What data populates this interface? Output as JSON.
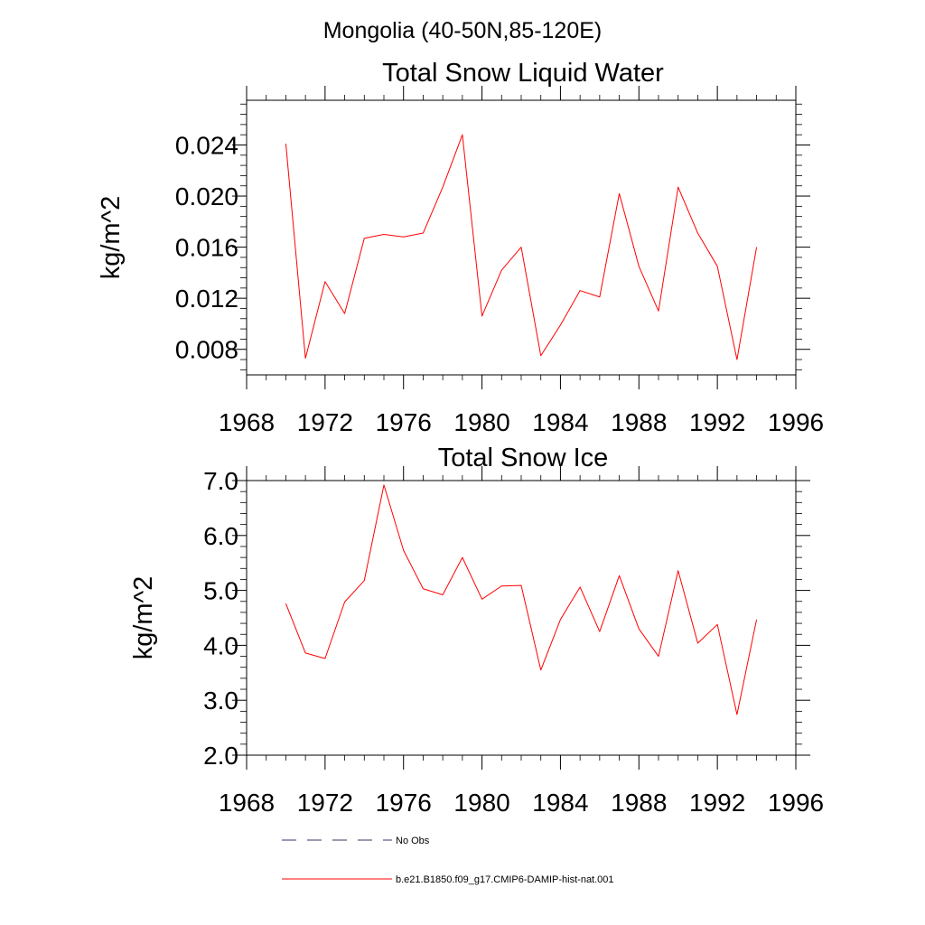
{
  "figure": {
    "title": "Mongolia (40-50N,85-120E)"
  },
  "chart_data": [
    {
      "type": "line",
      "title": "Total Snow Liquid Water",
      "xlabel": "",
      "ylabel": "kg/m^2",
      "xlim": [
        1968,
        1996
      ],
      "ylim": [
        0.006,
        0.0275
      ],
      "xticks": [
        1968,
        1972,
        1976,
        1980,
        1984,
        1988,
        1992,
        1996
      ],
      "xtick_labels": [
        "1968",
        "1972",
        "1976",
        "1980",
        "1984",
        "1988",
        "1992",
        "1996"
      ],
      "yticks": [
        0.008,
        0.012,
        0.016,
        0.02,
        0.024
      ],
      "ytick_labels": [
        "0.008",
        "0.012",
        "0.016",
        "0.020",
        "0.024"
      ],
      "grid": false,
      "series": [
        {
          "color": "#ff0000",
          "x": [
            1970,
            1971,
            1972,
            1973,
            1974,
            1975,
            1976,
            1977,
            1978,
            1979,
            1980,
            1981,
            1982,
            1983,
            1984,
            1985,
            1986,
            1987,
            1988,
            1989,
            1990,
            1991,
            1992,
            1993,
            1994
          ],
          "values": [
            0.0241,
            0.0073,
            0.0133,
            0.0108,
            0.0167,
            0.017,
            0.0168,
            0.0171,
            0.0207,
            0.0248,
            0.0106,
            0.0142,
            0.016,
            0.0075,
            0.0099,
            0.0126,
            0.0121,
            0.0202,
            0.0145,
            0.011,
            0.0207,
            0.0171,
            0.0145,
            0.0072,
            0.016
          ]
        }
      ]
    },
    {
      "type": "line",
      "title": "Total Snow Ice",
      "xlabel": "",
      "ylabel": "kg/m^2",
      "xlim": [
        1968,
        1996
      ],
      "ylim": [
        2.0,
        7.0
      ],
      "xticks": [
        1968,
        1972,
        1976,
        1980,
        1984,
        1988,
        1992,
        1996
      ],
      "xtick_labels": [
        "1968",
        "1972",
        "1976",
        "1980",
        "1984",
        "1988",
        "1992",
        "1996"
      ],
      "yticks": [
        2.0,
        3.0,
        4.0,
        5.0,
        6.0,
        7.0
      ],
      "ytick_labels": [
        "2.0",
        "3.0",
        "4.0",
        "5.0",
        "6.0",
        "7.0"
      ],
      "grid": false,
      "series": [
        {
          "color": "#ff0000",
          "x": [
            1970,
            1971,
            1972,
            1973,
            1974,
            1975,
            1976,
            1977,
            1978,
            1979,
            1980,
            1981,
            1982,
            1983,
            1984,
            1985,
            1986,
            1987,
            1988,
            1989,
            1990,
            1991,
            1992,
            1993,
            1994
          ],
          "values": [
            4.76,
            3.86,
            3.76,
            4.79,
            5.18,
            6.92,
            5.73,
            5.03,
            4.92,
            5.6,
            4.84,
            5.08,
            5.09,
            3.55,
            4.47,
            5.06,
            4.25,
            5.27,
            4.3,
            3.8,
            5.36,
            4.04,
            4.38,
            2.74,
            4.47
          ]
        }
      ]
    }
  ],
  "legend": {
    "placement": "bottom",
    "items": [
      {
        "label": "No Obs",
        "color": "#333366",
        "style": "dashed"
      },
      {
        "label": "b.e21.B1850.f09_g17.CMIP6-DAMIP-hist-nat.001",
        "color": "#ff0000",
        "style": "solid"
      }
    ]
  }
}
